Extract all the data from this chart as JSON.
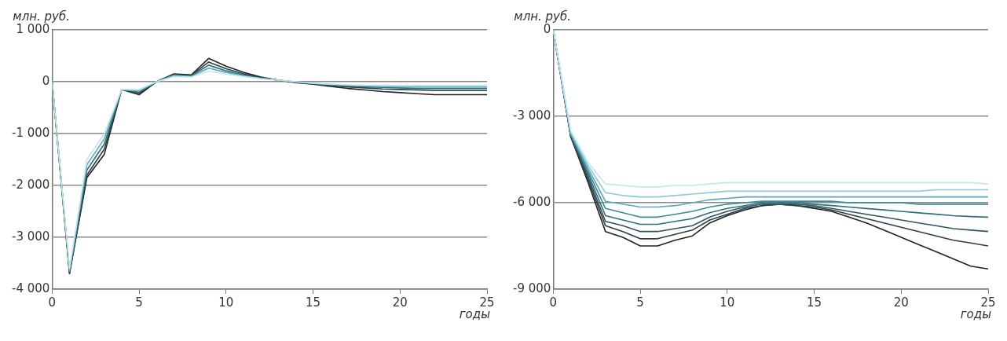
{
  "chart_data": [
    {
      "type": "line",
      "ylabel": "млн. руб.",
      "xlabel": "годы",
      "x": [
        0,
        1,
        2,
        3,
        4,
        5,
        6,
        7,
        8,
        9,
        10,
        11,
        12,
        13,
        14,
        15,
        16,
        17,
        18,
        19,
        20,
        21,
        22,
        23,
        24,
        25
      ],
      "xlim": [
        0,
        25
      ],
      "xticks": [
        0,
        5,
        10,
        15,
        20,
        25
      ],
      "ylim": [
        -4000,
        1000
      ],
      "yticks": [
        {
          "value": -4000,
          "label": "-4 000"
        },
        {
          "value": -3000,
          "label": "-3 000"
        },
        {
          "value": -2000,
          "label": "-2 000"
        },
        {
          "value": -1000,
          "label": "-1 000"
        },
        0,
        {
          "value": 1000,
          "label": "1 000"
        }
      ],
      "grid": "y",
      "legend": false,
      "marker": "none",
      "line_style": "solid",
      "series": [
        {
          "color": "#c4e5ec",
          "values": [
            0,
            -3600,
            -1500,
            -1000,
            -150,
            -150,
            0,
            100,
            90,
            200,
            150,
            100,
            60,
            30,
            0,
            -30,
            -50,
            -60,
            -70,
            -70,
            -70,
            -70,
            -70,
            -70,
            -70,
            -70
          ]
        },
        {
          "color": "#5aa9b8",
          "values": [
            0,
            -3650,
            -1600,
            -1100,
            -150,
            -180,
            0,
            120,
            100,
            260,
            180,
            110,
            60,
            30,
            0,
            -30,
            -50,
            -70,
            -80,
            -90,
            -100,
            -100,
            -100,
            -100,
            -100,
            -100
          ]
        },
        {
          "color": "#2e6f7d",
          "values": [
            0,
            -3650,
            -1700,
            -1200,
            -150,
            -200,
            0,
            130,
            110,
            320,
            210,
            130,
            70,
            30,
            -10,
            -40,
            -60,
            -80,
            -100,
            -110,
            -120,
            -130,
            -130,
            -130,
            -130,
            -130
          ]
        },
        {
          "color": "#2d3e44",
          "values": [
            0,
            -3700,
            -1800,
            -1300,
            -150,
            -220,
            0,
            140,
            120,
            380,
            250,
            150,
            80,
            30,
            -10,
            -40,
            -70,
            -100,
            -120,
            -140,
            -150,
            -160,
            -170,
            -170,
            -170,
            -170
          ]
        },
        {
          "color": "#222222",
          "values": [
            0,
            -3700,
            -1850,
            -1400,
            -150,
            -250,
            0,
            150,
            130,
            450,
            300,
            180,
            90,
            30,
            -20,
            -50,
            -90,
            -130,
            -160,
            -190,
            -210,
            -230,
            -250,
            -250,
            -250,
            -250
          ]
        }
      ]
    },
    {
      "type": "line",
      "ylabel": "млн. руб.",
      "xlabel": "годы",
      "x": [
        0,
        1,
        2,
        3,
        4,
        5,
        6,
        7,
        8,
        9,
        10,
        11,
        12,
        13,
        14,
        15,
        16,
        17,
        18,
        19,
        20,
        21,
        22,
        23,
        24,
        25
      ],
      "xlim": [
        0,
        25
      ],
      "xticks": [
        0,
        5,
        10,
        15,
        20,
        25
      ],
      "ylim": [
        -9000,
        0
      ],
      "yticks": [
        {
          "value": -9000,
          "label": "-9 000"
        },
        {
          "value": -6000,
          "label": "-6 000"
        },
        {
          "value": -3000,
          "label": "-3 000"
        },
        0
      ],
      "grid": "y",
      "legend": false,
      "marker": "none",
      "line_style": "solid",
      "series": [
        {
          "color": "#c4e5ec",
          "values": [
            0,
            -3500,
            -4600,
            -5350,
            -5400,
            -5450,
            -5450,
            -5400,
            -5400,
            -5350,
            -5300,
            -5300,
            -5300,
            -5300,
            -5300,
            -5300,
            -5300,
            -5300,
            -5300,
            -5300,
            -5300,
            -5300,
            -5300,
            -5300,
            -5300,
            -5350
          ]
        },
        {
          "color": "#8ccbd7",
          "values": [
            0,
            -3550,
            -4700,
            -5650,
            -5750,
            -5800,
            -5800,
            -5750,
            -5700,
            -5650,
            -5600,
            -5600,
            -5600,
            -5600,
            -5600,
            -5600,
            -5600,
            -5600,
            -5600,
            -5600,
            -5600,
            -5600,
            -5550,
            -5550,
            -5550,
            -5550
          ]
        },
        {
          "color": "#5aa9b8",
          "values": [
            0,
            -3600,
            -4800,
            -5950,
            -6050,
            -6150,
            -6150,
            -6100,
            -6000,
            -5900,
            -5850,
            -5800,
            -5800,
            -5800,
            -5800,
            -5800,
            -5800,
            -5800,
            -5800,
            -5800,
            -5800,
            -5800,
            -5800,
            -5800,
            -5800,
            -5800
          ]
        },
        {
          "color": "#3a8a9a",
          "values": [
            0,
            -3600,
            -4900,
            -6200,
            -6350,
            -6500,
            -6500,
            -6400,
            -6300,
            -6150,
            -6050,
            -6000,
            -5950,
            -5950,
            -5950,
            -5950,
            -5950,
            -6000,
            -6000,
            -6000,
            -6000,
            -6050,
            -6050,
            -6050,
            -6050,
            -6050
          ]
        },
        {
          "color": "#2e6f7d",
          "values": [
            0,
            -3650,
            -5000,
            -6450,
            -6600,
            -6750,
            -6750,
            -6650,
            -6550,
            -6350,
            -6200,
            -6100,
            -6000,
            -6000,
            -6000,
            -6050,
            -6100,
            -6150,
            -6200,
            -6250,
            -6300,
            -6350,
            -6400,
            -6450,
            -6480,
            -6500
          ]
        },
        {
          "color": "#2f5560",
          "values": [
            0,
            -3650,
            -5100,
            -6650,
            -6800,
            -7000,
            -7000,
            -6900,
            -6800,
            -6500,
            -6300,
            -6150,
            -6050,
            -6050,
            -6050,
            -6100,
            -6200,
            -6300,
            -6400,
            -6500,
            -6600,
            -6700,
            -6800,
            -6900,
            -6950,
            -7000
          ]
        },
        {
          "color": "#2d3e44",
          "values": [
            0,
            -3700,
            -5200,
            -6800,
            -7000,
            -7250,
            -7250,
            -7100,
            -6950,
            -6600,
            -6400,
            -6200,
            -6100,
            -6050,
            -6100,
            -6150,
            -6250,
            -6400,
            -6550,
            -6700,
            -6850,
            -7000,
            -7150,
            -7300,
            -7400,
            -7500
          ]
        },
        {
          "color": "#222222",
          "values": [
            0,
            -3700,
            -5300,
            -7000,
            -7200,
            -7500,
            -7500,
            -7300,
            -7150,
            -6700,
            -6450,
            -6250,
            -6100,
            -6050,
            -6100,
            -6200,
            -6300,
            -6500,
            -6700,
            -6950,
            -7200,
            -7450,
            -7700,
            -7950,
            -8200,
            -8300
          ]
        }
      ]
    }
  ]
}
